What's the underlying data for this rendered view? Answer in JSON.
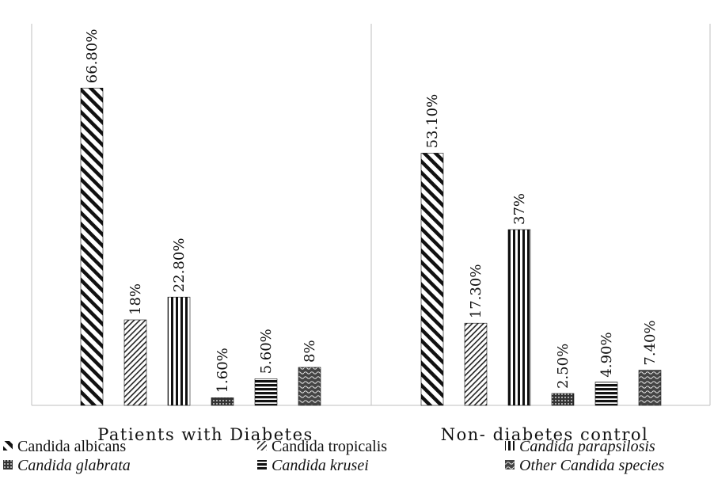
{
  "chart_data": {
    "type": "bar",
    "categories": [
      "Patients with Diabetes",
      "Non- diabetes control"
    ],
    "series": [
      {
        "name": "Candida albicans",
        "italic": false,
        "pattern": "diag-back",
        "values": [
          66.8,
          53.1
        ],
        "labels": [
          "66.80%",
          "53.10%"
        ]
      },
      {
        "name": "Candida tropicalis",
        "italic": false,
        "pattern": "diag-fwd",
        "values": [
          18,
          17.3
        ],
        "labels": [
          "18%",
          "17.30%"
        ]
      },
      {
        "name": "Candida parapsilosis",
        "italic": true,
        "pattern": "vertical",
        "values": [
          22.8,
          37
        ],
        "labels": [
          "22.80%",
          "37%"
        ]
      },
      {
        "name": "Candida glabrata",
        "italic": true,
        "pattern": "dots",
        "values": [
          1.6,
          2.5
        ],
        "labels": [
          "1.60%",
          "2.50%"
        ]
      },
      {
        "name": "Candida krusei",
        "italic": true,
        "pattern": "horizontal",
        "values": [
          5.6,
          4.9
        ],
        "labels": [
          "5.60%",
          "4.90%"
        ]
      },
      {
        "name": "Other Candida species",
        "italic": true,
        "pattern": "wave",
        "values": [
          8,
          7.4
        ],
        "labels": [
          "8%",
          "7.40%"
        ]
      }
    ],
    "ylim": [
      0,
      80
    ],
    "grid": false,
    "legend_position": "bottom",
    "colors": {
      "ink": "#111111",
      "pattern_bg": "#ffffff",
      "axis": "#bfbfbf"
    }
  }
}
